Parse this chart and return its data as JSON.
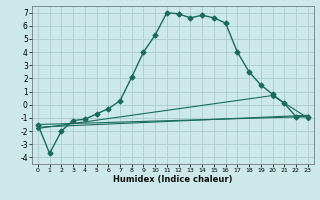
{
  "xlabel": "Humidex (Indice chaleur)",
  "bg_color": "#cce8e8",
  "grid_color": "#aacccc",
  "line_color": "#1a6b5a",
  "xlim": [
    -0.5,
    23.5
  ],
  "ylim": [
    -4.5,
    7.5
  ],
  "yticks": [
    -4,
    -3,
    -2,
    -1,
    0,
    1,
    2,
    3,
    4,
    5,
    6,
    7
  ],
  "xticks": [
    0,
    1,
    2,
    3,
    4,
    5,
    6,
    7,
    8,
    9,
    10,
    11,
    12,
    13,
    14,
    15,
    16,
    17,
    18,
    19,
    20,
    21,
    22,
    23
  ],
  "series1_x": [
    0,
    1,
    2,
    3,
    4,
    5,
    6,
    7,
    8,
    9,
    10,
    11,
    12,
    13,
    14,
    15,
    16,
    17,
    18,
    19,
    20,
    21,
    22,
    23
  ],
  "series1_y": [
    -1.5,
    -3.7,
    -2.0,
    -1.2,
    -1.1,
    -0.7,
    -0.3,
    0.3,
    2.1,
    4.0,
    5.3,
    7.0,
    6.9,
    6.6,
    6.8,
    6.6,
    6.2,
    4.0,
    2.5,
    1.5,
    0.8,
    0.1,
    -0.9,
    -0.9
  ],
  "line2_x": [
    0,
    23
  ],
  "line2_y": [
    -1.5,
    -0.9
  ],
  "line3_x": [
    0,
    23
  ],
  "line3_y": [
    -1.7,
    -0.8
  ],
  "line4_x": [
    0,
    20,
    23
  ],
  "line4_y": [
    -1.8,
    0.7,
    -1.0
  ],
  "marker2_x": [
    3,
    4,
    5,
    22,
    23
  ],
  "marker2_y": [
    -1.2,
    -1.1,
    -0.9,
    -0.9,
    -0.9
  ],
  "marker3_x": [
    3,
    4,
    5,
    22,
    23
  ],
  "marker3_y": [
    -1.35,
    -1.1,
    -0.95,
    -1.05,
    -1.0
  ],
  "marker4_x": [
    3,
    4,
    20,
    21,
    22,
    23
  ],
  "marker4_y": [
    -1.5,
    -1.2,
    0.7,
    0.3,
    -0.85,
    -0.95
  ]
}
